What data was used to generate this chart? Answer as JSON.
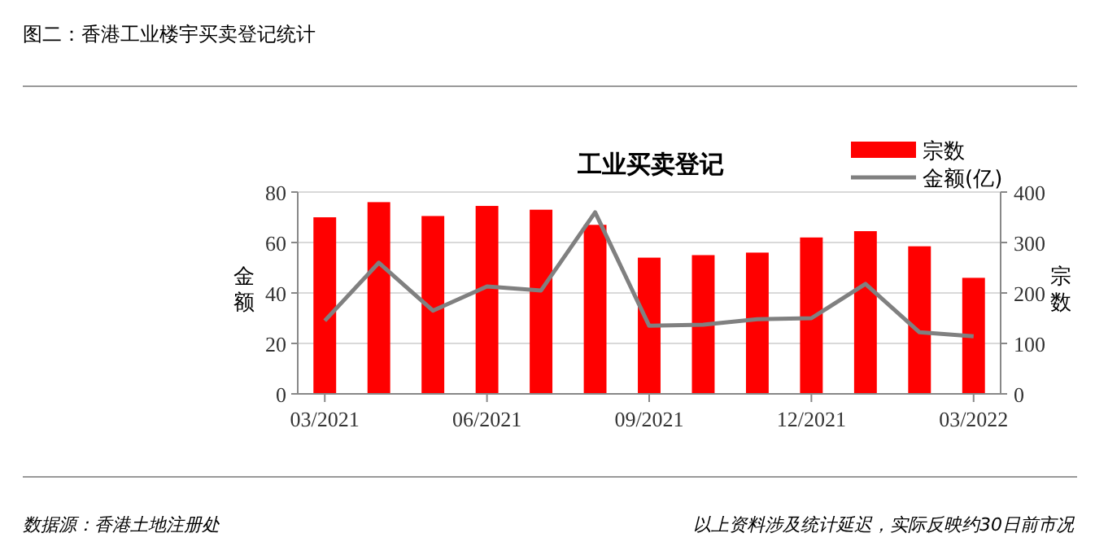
{
  "chart_data": {
    "type": "bar",
    "title": "图二：香港工业楼宇买卖登记统计",
    "subtitle": "工业买卖登记",
    "ylabel": "金额",
    "y2label": "宗数",
    "categories": [
      "03/2021",
      null,
      null,
      "06/2021",
      null,
      null,
      "09/2021",
      null,
      null,
      "12/2021",
      null,
      null,
      "03/2022"
    ],
    "series": [
      {
        "name": "宗数",
        "color": "#ff0000",
        "values": [
          70,
          76,
          70.5,
          74.5,
          73,
          67,
          54,
          55,
          56,
          62,
          64.5,
          58.5,
          46
        ]
      },
      {
        "name": "金额(亿)",
        "type": "line",
        "axis": "y2",
        "color": "#808080",
        "values": [
          145,
          260,
          165,
          213,
          205,
          360,
          135,
          137,
          148,
          150,
          218,
          122,
          114
        ]
      }
    ],
    "ylim": [
      0,
      80
    ],
    "yticks": [
      0,
      20,
      40,
      60,
      80
    ],
    "y2lim": [
      0,
      400
    ],
    "y2ticks": [
      0,
      100,
      200,
      300,
      400
    ],
    "grid": "y",
    "legend": "top right",
    "annotations": [
      "数据源：香港土地注册处",
      "以上资料涉及统计延迟，实际反映约30日前市况"
    ]
  }
}
